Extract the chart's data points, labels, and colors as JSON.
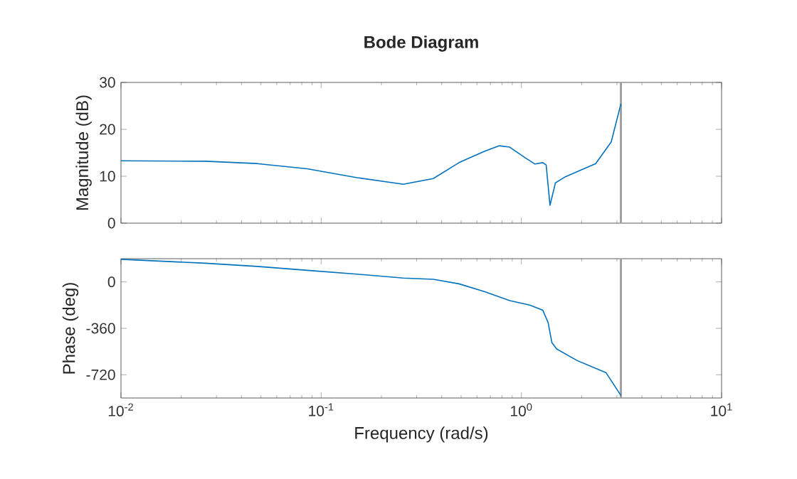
{
  "chart_data": [
    {
      "type": "line",
      "title": "Bode Diagram",
      "ylabel": "Magnitude (dB)",
      "log": "x",
      "tick_labels": "y",
      "xlim": [
        0.01,
        10
      ],
      "xticks": [
        0.01,
        0.1,
        1,
        10
      ],
      "ylim": [
        0,
        30
      ],
      "yticks": [
        0,
        10,
        20,
        30
      ],
      "ref_lines": [
        {
          "axis": "x",
          "value": 3.1416,
          "color": "#a0a0a0"
        }
      ],
      "series": [
        {
          "color": "#0072bd",
          "x": [
            0.01,
            0.0264,
            0.0479,
            0.0852,
            0.151,
            0.257,
            0.363,
            0.488,
            0.653,
            0.777,
            0.875,
            1.04,
            1.17,
            1.28,
            1.33,
            1.39,
            1.48,
            1.66,
            2.35,
            2.81,
            3.14
          ],
          "values": [
            13.3,
            13.2,
            12.7,
            11.6,
            9.7,
            8.3,
            9.5,
            12.9,
            15.3,
            16.5,
            16.2,
            14.0,
            12.6,
            12.9,
            12.4,
            3.8,
            8.6,
            9.9,
            12.7,
            17.3,
            25.4
          ]
        }
      ]
    },
    {
      "type": "line",
      "xlabel": "Frequency (rad/s)",
      "ylabel": "Phase (deg)",
      "log": "x",
      "xlim": [
        0.01,
        10
      ],
      "xticks": [
        {
          "value": 0.01,
          "label": "10$^{-2}$"
        },
        {
          "value": 0.1,
          "label": "10$^{-1}$"
        },
        {
          "value": 1,
          "label": "10$^{0}$"
        },
        {
          "value": 10,
          "label": "10$^{1}$"
        }
      ],
      "ylim": [
        -900,
        180
      ],
      "yticks": [
        -720,
        -360,
        0
      ],
      "ref_lines": [
        {
          "axis": "x",
          "value": 3.1416,
          "color": "#a0a0a0"
        }
      ],
      "series": [
        {
          "color": "#0072bd",
          "x": [
            0.01,
            0.0264,
            0.0479,
            0.0852,
            0.151,
            0.257,
            0.363,
            0.488,
            0.653,
            0.875,
            1.1,
            1.28,
            1.36,
            1.42,
            1.5,
            1.9,
            2.65,
            3.14
          ],
          "values": [
            175,
            145,
            120,
            90,
            60,
            30,
            20,
            -15,
            -75,
            -145,
            -180,
            -220,
            -315,
            -470,
            -520,
            -610,
            -705,
            -880
          ]
        }
      ]
    }
  ]
}
